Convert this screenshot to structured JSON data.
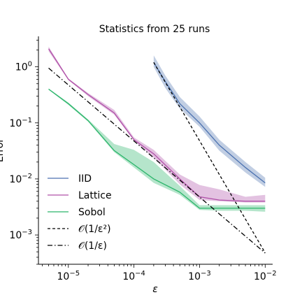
{
  "chart_data": {
    "type": "line",
    "title": "Statistics from 25 runs",
    "xlabel": "ε",
    "ylabel": "Error",
    "xscale": "log",
    "yscale": "log",
    "xlim": [
      3.5e-06,
      0.013
    ],
    "ylim": [
      0.0003,
      3.5
    ],
    "grid": false,
    "legend_position": "lower-left",
    "x_ticks": [
      {
        "value": 1e-05,
        "base": "10",
        "exp": "−5"
      },
      {
        "value": 0.0001,
        "base": "10",
        "exp": "−4"
      },
      {
        "value": 0.001,
        "base": "10",
        "exp": "−3"
      },
      {
        "value": 0.01,
        "base": "10",
        "exp": "−2"
      }
    ],
    "y_ticks": [
      {
        "value": 1,
        "base": "10",
        "exp": "0"
      },
      {
        "value": 0.1,
        "base": "10",
        "exp": "−1"
      },
      {
        "value": 0.01,
        "base": "10",
        "exp": "−2"
      },
      {
        "value": 0.001,
        "base": "10",
        "exp": "−3"
      }
    ],
    "series": [
      {
        "name": "IID",
        "color": "#4c72b0",
        "style": "solid",
        "x": [
          0.0002,
          0.0003,
          0.0005,
          0.001,
          0.002,
          0.005,
          0.01
        ],
        "y": [
          1.2,
          0.55,
          0.22,
          0.1,
          0.04,
          0.016,
          0.0085
        ],
        "band_low": [
          1.0,
          0.42,
          0.18,
          0.085,
          0.032,
          0.013,
          0.0072
        ],
        "band_high": [
          1.6,
          0.7,
          0.29,
          0.13,
          0.05,
          0.02,
          0.0105
        ]
      },
      {
        "name": "Lattice",
        "color": "#b050a8",
        "style": "solid",
        "x": [
          5e-06,
          1e-05,
          2e-05,
          5e-05,
          0.0001,
          0.0002,
          0.0005,
          0.001,
          0.002,
          0.005,
          0.01
        ],
        "y": [
          2.1,
          0.6,
          0.32,
          0.15,
          0.05,
          0.028,
          0.01,
          0.0048,
          0.0042,
          0.004,
          0.004
        ],
        "band_low": [
          1.9,
          0.58,
          0.3,
          0.14,
          0.048,
          0.024,
          0.008,
          0.0042,
          0.004,
          0.0038,
          0.0038
        ],
        "band_high": [
          2.3,
          0.62,
          0.34,
          0.17,
          0.055,
          0.033,
          0.012,
          0.0078,
          0.0065,
          0.0048,
          0.0052
        ]
      },
      {
        "name": "Sobol",
        "color": "#2ab56a",
        "style": "solid",
        "x": [
          5e-06,
          1e-05,
          2e-05,
          5e-05,
          0.0001,
          0.0002,
          0.0005,
          0.001,
          0.002,
          0.005,
          0.01
        ],
        "y": [
          0.4,
          0.22,
          0.11,
          0.032,
          0.018,
          0.01,
          0.0058,
          0.003,
          0.003,
          0.003,
          0.003
        ],
        "band_low": [
          0.39,
          0.21,
          0.105,
          0.03,
          0.016,
          0.0085,
          0.0052,
          0.0028,
          0.0027,
          0.0027,
          0.0026
        ],
        "band_high": [
          0.41,
          0.23,
          0.115,
          0.042,
          0.033,
          0.02,
          0.0075,
          0.0034,
          0.0034,
          0.0034,
          0.0034
        ]
      },
      {
        "name": "𝒪(1/ε²)",
        "color": "#000000",
        "style": "dashed",
        "x": [
          0.0002,
          0.01
        ],
        "y": [
          1.2,
          0.00048
        ]
      },
      {
        "name": "𝒪(1/ε)",
        "color": "#000000",
        "style": "dashdot",
        "x": [
          5e-06,
          0.01
        ],
        "y": [
          0.95,
          0.000475
        ]
      }
    ]
  }
}
